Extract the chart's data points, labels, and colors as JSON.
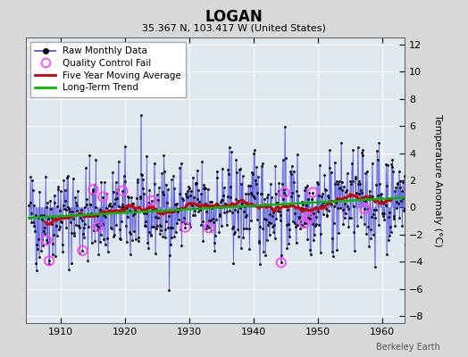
{
  "title": "LOGAN",
  "subtitle": "35.367 N, 103.417 W (United States)",
  "watermark": "Berkeley Earth",
  "ylabel": "Temperature Anomaly (°C)",
  "xlim": [
    1904.5,
    1963.5
  ],
  "ylim": [
    -8.5,
    12.5
  ],
  "yticks": [
    -8,
    -6,
    -4,
    -2,
    0,
    2,
    4,
    6,
    8,
    10,
    12
  ],
  "xticks": [
    1910,
    1920,
    1930,
    1940,
    1950,
    1960
  ],
  "fig_bg_color": "#d8d8d8",
  "plot_bg_color": "#e0e8f0",
  "grid_color": "#ffffff",
  "raw_line_color": "#4444dd",
  "raw_dot_color": "#000000",
  "raw_dot_size": 4,
  "ma_color": "#cc0000",
  "trend_color": "#00bb00",
  "qc_color": "#ff44ff",
  "legend_entries": [
    "Raw Monthly Data",
    "Quality Control Fail",
    "Five Year Moving Average",
    "Long-Term Trend"
  ],
  "trend_slope": 0.025,
  "trend_intercept": -0.75,
  "noise_scale": 1.8,
  "seed": 42,
  "start_year": 1905.0,
  "end_year": 1963.0,
  "qc_years": [
    1907.8,
    1908.2,
    1913.4,
    1915.0,
    1915.8,
    1916.5,
    1919.6,
    1924.1,
    1929.4,
    1933.0,
    1944.3,
    1944.8,
    1947.9,
    1948.5,
    1949.2,
    1957.3
  ]
}
